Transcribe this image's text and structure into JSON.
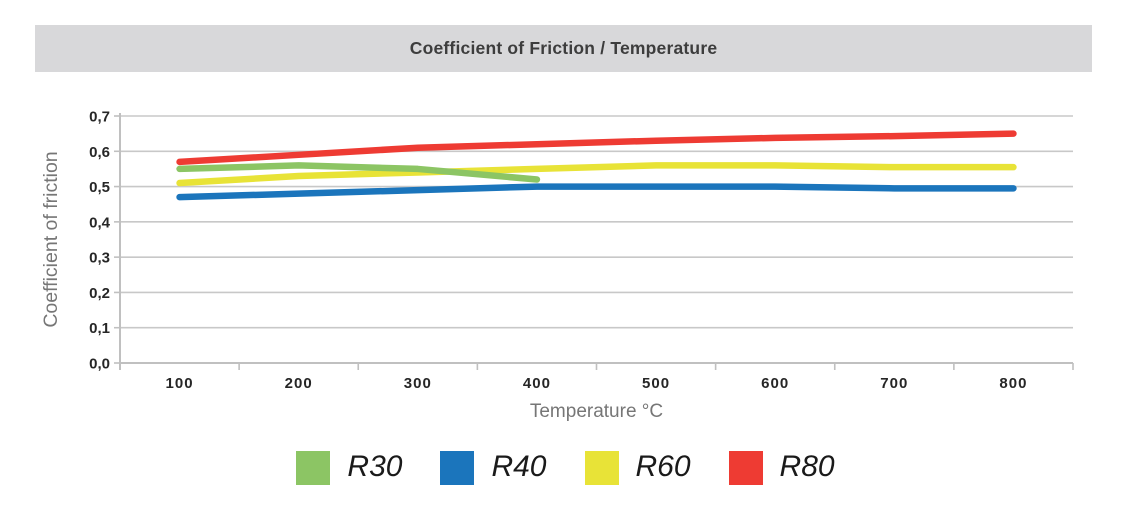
{
  "title": "Coefficient of Friction / Temperature",
  "chart_data": {
    "type": "line",
    "title": "Coefficient of Friction / Temperature",
    "xlabel": "Temperature °C",
    "ylabel": "Coefficient of friction",
    "categories": [
      100,
      200,
      300,
      400,
      500,
      600,
      700,
      800
    ],
    "x_tick_labels": [
      "100",
      "200",
      "300",
      "400",
      "500",
      "600",
      "700",
      "800"
    ],
    "y_tick_labels": [
      "0,0",
      "0,1",
      "0,2",
      "0,3",
      "0,4",
      "0,5",
      "0,6",
      "0,7"
    ],
    "ylim": [
      0.0,
      0.7
    ],
    "grid": "horizontal",
    "legend_position": "bottom",
    "series": [
      {
        "name": "R30",
        "color": "#8cc564",
        "values": [
          0.55,
          0.56,
          0.55,
          0.52,
          null,
          null,
          null,
          null
        ]
      },
      {
        "name": "R40",
        "color": "#1b75bc",
        "values": [
          0.47,
          0.48,
          0.49,
          0.5,
          0.5,
          0.5,
          0.495,
          0.495
        ]
      },
      {
        "name": "R60",
        "color": "#e8e337",
        "values": [
          0.51,
          0.53,
          0.54,
          0.55,
          0.56,
          0.56,
          0.555,
          0.555
        ]
      },
      {
        "name": "R80",
        "color": "#ee3b33",
        "values": [
          0.57,
          0.59,
          0.61,
          0.62,
          0.63,
          0.638,
          0.643,
          0.65
        ]
      }
    ],
    "colors": {
      "grid": "#c8c8c8",
      "axis": "#c0c0c0",
      "tick_label": "#262626",
      "axis_title": "#767676",
      "title_bar_bg": "#d8d8da",
      "title_text": "#3d3d3d",
      "legend_text": "#1a1a1a"
    }
  }
}
